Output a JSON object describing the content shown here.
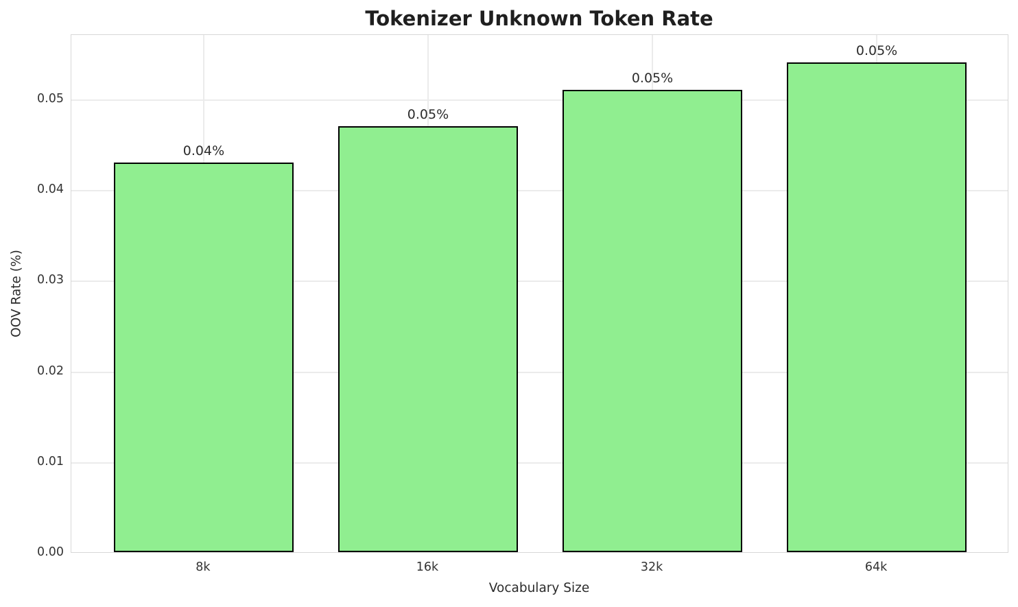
{
  "chart_data": {
    "type": "bar",
    "title": "Tokenizer Unknown Token Rate",
    "xlabel": "Vocabulary Size",
    "ylabel": "OOV Rate (%)",
    "categories": [
      "8k",
      "16k",
      "32k",
      "64k"
    ],
    "values": [
      0.043,
      0.047,
      0.051,
      0.054
    ],
    "bar_labels": [
      "0.04%",
      "0.05%",
      "0.05%",
      "0.05%"
    ],
    "ytick_labels": [
      "0.00",
      "0.01",
      "0.02",
      "0.03",
      "0.04",
      "0.05"
    ],
    "ylim": [
      0,
      0.0572
    ],
    "grid": true,
    "legend_position": "none",
    "colors": {
      "bar_fill": "#90EE90",
      "bar_edge": "#000000",
      "grid_line": "#ebebeb",
      "spine": "#d7d7d7",
      "title_text": "#1f1f1f",
      "tick_text": "#333333"
    }
  }
}
